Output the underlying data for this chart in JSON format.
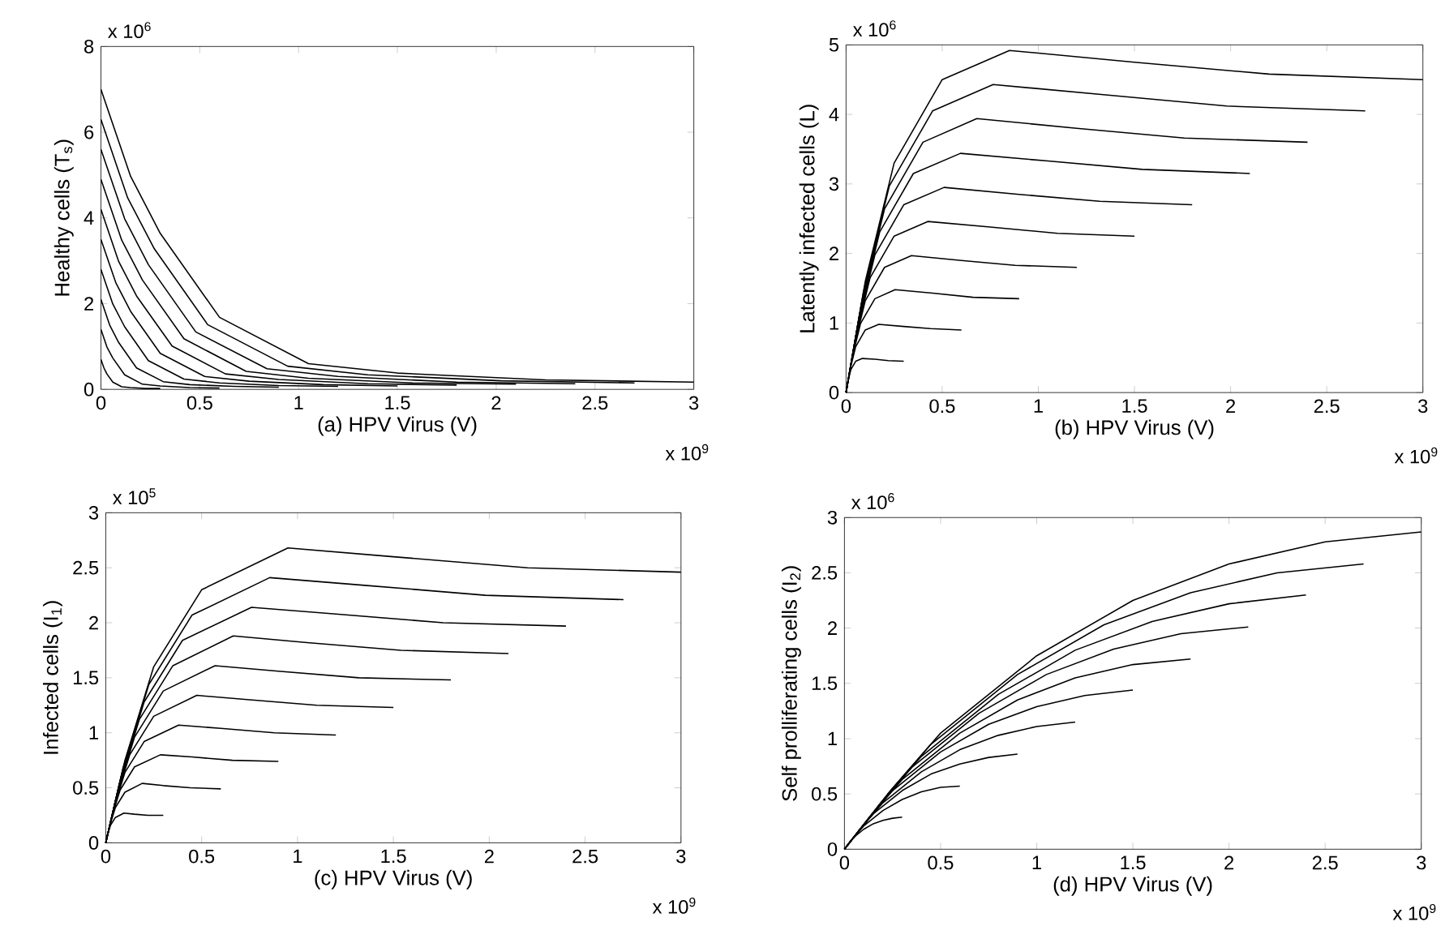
{
  "chart_data": [
    {
      "type": "line",
      "xlabel": "(a) HPV Virus (V)",
      "ylabel": "Healthy cells (T$_{s}$)",
      "annotations": [
        "x 10$^{6}$",
        "x 10$^{9}$"
      ],
      "xlim": [
        0,
        3
      ],
      "xticks": [
        0,
        0.5,
        1,
        1.5,
        2,
        2.5,
        3
      ],
      "ylim": [
        0,
        8
      ],
      "yticks": [
        0,
        2,
        4,
        6,
        8
      ],
      "series": [
        {
          "color": "#000000",
          "x": [
            0,
            0.015,
            0.03,
            0.06,
            0.105,
            0.15,
            0.225,
            0.3
          ],
          "values": [
            0.7,
            0.5,
            0.36,
            0.17,
            0.06,
            0.04,
            0.02,
            0.02
          ]
        },
        {
          "color": "#000000",
          "x": [
            0,
            0.03,
            0.06,
            0.12,
            0.21,
            0.3,
            0.45,
            0.6
          ],
          "values": [
            1.4,
            0.99,
            0.73,
            0.34,
            0.12,
            0.08,
            0.04,
            0.03
          ]
        },
        {
          "color": "#000000",
          "x": [
            0,
            0.045,
            0.09,
            0.18,
            0.315,
            0.45,
            0.675,
            0.9
          ],
          "values": [
            2.1,
            1.49,
            1.09,
            0.5,
            0.18,
            0.11,
            0.07,
            0.05
          ]
        },
        {
          "color": "#000000",
          "x": [
            0,
            0.06,
            0.12,
            0.24,
            0.42,
            0.6,
            0.9,
            1.2
          ],
          "values": [
            2.8,
            1.99,
            1.46,
            0.67,
            0.24,
            0.15,
            0.09,
            0.07
          ]
        },
        {
          "color": "#000000",
          "x": [
            0,
            0.075,
            0.15,
            0.3,
            0.525,
            0.75,
            1.125,
            1.5
          ],
          "values": [
            3.5,
            2.49,
            1.82,
            0.84,
            0.3,
            0.19,
            0.11,
            0.08
          ]
        },
        {
          "color": "#000000",
          "x": [
            0,
            0.09,
            0.18,
            0.36,
            0.63,
            0.9,
            1.35,
            1.8
          ],
          "values": [
            4.2,
            2.98,
            2.18,
            1.01,
            0.36,
            0.23,
            0.13,
            0.1
          ]
        },
        {
          "color": "#000000",
          "x": [
            0,
            0.105,
            0.21,
            0.42,
            0.735,
            1.05,
            1.575,
            2.1
          ],
          "values": [
            4.9,
            3.48,
            2.55,
            1.18,
            0.42,
            0.26,
            0.15,
            0.12
          ]
        },
        {
          "color": "#000000",
          "x": [
            0,
            0.12,
            0.24,
            0.48,
            0.84,
            1.2,
            1.8,
            2.4
          ],
          "values": [
            5.6,
            3.98,
            2.91,
            1.34,
            0.48,
            0.3,
            0.17,
            0.13
          ]
        },
        {
          "color": "#000000",
          "x": [
            0,
            0.135,
            0.27,
            0.54,
            0.945,
            1.35,
            2.025,
            2.7
          ],
          "values": [
            6.3,
            4.47,
            3.28,
            1.51,
            0.54,
            0.34,
            0.2,
            0.15
          ]
        },
        {
          "color": "#000000",
          "x": [
            0,
            0.15,
            0.3,
            0.6,
            1.05,
            1.5,
            2.25,
            3
          ],
          "values": [
            7,
            4.97,
            3.64,
            1.68,
            0.6,
            0.38,
            0.22,
            0.17
          ]
        }
      ]
    },
    {
      "type": "line",
      "xlabel": "(b) HPV Virus (V)",
      "ylabel": "Latently infected cells (L)",
      "annotations": [
        "x 10$^{6}$",
        "x 10$^{9}$"
      ],
      "xlim": [
        0,
        3
      ],
      "xticks": [
        0,
        0.5,
        1,
        1.5,
        2,
        2.5,
        3
      ],
      "ylim": [
        0,
        5
      ],
      "yticks": [
        0,
        1,
        2,
        3,
        4,
        5
      ],
      "series": [
        {
          "color": "#000000",
          "x": [
            0,
            0.01,
            0.025,
            0.05,
            0.085,
            0.15,
            0.22,
            0.3
          ],
          "values": [
            0,
            0.16,
            0.33,
            0.45,
            0.49,
            0.48,
            0.46,
            0.45
          ]
        },
        {
          "color": "#000000",
          "x": [
            0,
            0.02,
            0.05,
            0.1,
            0.17,
            0.3,
            0.44,
            0.6
          ],
          "values": [
            0,
            0.32,
            0.66,
            0.9,
            0.98,
            0.95,
            0.92,
            0.9
          ]
        },
        {
          "color": "#000000",
          "x": [
            0,
            0.03,
            0.075,
            0.15,
            0.255,
            0.45,
            0.66,
            0.9
          ],
          "values": [
            0,
            0.48,
            0.99,
            1.35,
            1.48,
            1.43,
            1.37,
            1.35
          ]
        },
        {
          "color": "#000000",
          "x": [
            0,
            0.04,
            0.1,
            0.2,
            0.34,
            0.6,
            0.88,
            1.2
          ],
          "values": [
            0,
            0.64,
            1.32,
            1.8,
            1.97,
            1.9,
            1.83,
            1.8
          ]
        },
        {
          "color": "#000000",
          "x": [
            0,
            0.05,
            0.125,
            0.25,
            0.425,
            0.75,
            1.1,
            1.5
          ],
          "values": [
            0,
            0.8,
            1.65,
            2.25,
            2.46,
            2.38,
            2.29,
            2.25
          ]
        },
        {
          "color": "#000000",
          "x": [
            0,
            0.06,
            0.15,
            0.3,
            0.51,
            0.9,
            1.32,
            1.8
          ],
          "values": [
            0,
            0.96,
            1.98,
            2.7,
            2.95,
            2.85,
            2.75,
            2.7
          ]
        },
        {
          "color": "#000000",
          "x": [
            0,
            0.07,
            0.175,
            0.35,
            0.595,
            1.05,
            1.54,
            2.1
          ],
          "values": [
            0,
            1.12,
            2.31,
            3.15,
            3.44,
            3.33,
            3.21,
            3.15
          ]
        },
        {
          "color": "#000000",
          "x": [
            0,
            0.08,
            0.2,
            0.4,
            0.68,
            1.2,
            1.76,
            2.4
          ],
          "values": [
            0,
            1.28,
            2.64,
            3.6,
            3.94,
            3.8,
            3.66,
            3.6
          ]
        },
        {
          "color": "#000000",
          "x": [
            0,
            0.09,
            0.225,
            0.45,
            0.765,
            1.35,
            1.98,
            2.7
          ],
          "values": [
            0,
            1.44,
            2.97,
            4.05,
            4.43,
            4.28,
            4.12,
            4.05
          ]
        },
        {
          "color": "#000000",
          "x": [
            0,
            0.1,
            0.25,
            0.5,
            0.85,
            1.5,
            2.2,
            3
          ],
          "values": [
            0,
            1.6,
            3.3,
            4.5,
            4.92,
            4.75,
            4.58,
            4.5
          ]
        }
      ]
    },
    {
      "type": "line",
      "xlabel": "(c) HPV Virus (V)",
      "ylabel": "Infected cells (I$_{1}$)",
      "annotations": [
        "x 10$^{5}$",
        "x 10$^{9}$"
      ],
      "xlim": [
        0,
        3
      ],
      "xticks": [
        0,
        0.5,
        1,
        1.5,
        2,
        2.5,
        3
      ],
      "ylim": [
        0,
        3
      ],
      "yticks": [
        0,
        0.5,
        1,
        1.5,
        2,
        2.5,
        3
      ],
      "series": [
        {
          "color": "#000000",
          "x": [
            0,
            0.01,
            0.025,
            0.05,
            0.095,
            0.15,
            0.22,
            0.3
          ],
          "values": [
            0,
            0.08,
            0.16,
            0.23,
            0.27,
            0.26,
            0.25,
            0.25
          ]
        },
        {
          "color": "#000000",
          "x": [
            0,
            0.02,
            0.05,
            0.1,
            0.19,
            0.3,
            0.44,
            0.6
          ],
          "values": [
            0,
            0.15,
            0.32,
            0.46,
            0.54,
            0.52,
            0.5,
            0.49
          ]
        },
        {
          "color": "#000000",
          "x": [
            0,
            0.03,
            0.075,
            0.15,
            0.285,
            0.45,
            0.66,
            0.9
          ],
          "values": [
            0,
            0.23,
            0.48,
            0.69,
            0.8,
            0.78,
            0.75,
            0.74
          ]
        },
        {
          "color": "#000000",
          "x": [
            0,
            0.04,
            0.1,
            0.2,
            0.38,
            0.6,
            0.88,
            1.2
          ],
          "values": [
            0,
            0.3,
            0.64,
            0.92,
            1.07,
            1.04,
            1,
            0.98
          ]
        },
        {
          "color": "#000000",
          "x": [
            0,
            0.05,
            0.125,
            0.25,
            0.475,
            0.75,
            1.1,
            1.5
          ],
          "values": [
            0,
            0.38,
            0.8,
            1.15,
            1.34,
            1.3,
            1.25,
            1.23
          ]
        },
        {
          "color": "#000000",
          "x": [
            0,
            0.06,
            0.15,
            0.3,
            0.57,
            0.9,
            1.32,
            1.8
          ],
          "values": [
            0,
            0.45,
            0.96,
            1.38,
            1.61,
            1.56,
            1.5,
            1.48
          ]
        },
        {
          "color": "#000000",
          "x": [
            0,
            0.07,
            0.175,
            0.35,
            0.665,
            1.05,
            1.54,
            2.1
          ],
          "values": [
            0,
            0.53,
            1.12,
            1.61,
            1.88,
            1.82,
            1.75,
            1.72
          ]
        },
        {
          "color": "#000000",
          "x": [
            0,
            0.08,
            0.2,
            0.4,
            0.76,
            1.2,
            1.76,
            2.4
          ],
          "values": [
            0,
            0.6,
            1.28,
            1.84,
            2.14,
            2.08,
            2,
            1.97
          ]
        },
        {
          "color": "#000000",
          "x": [
            0,
            0.09,
            0.225,
            0.45,
            0.855,
            1.35,
            1.98,
            2.7
          ],
          "values": [
            0,
            0.68,
            1.44,
            2.07,
            2.41,
            2.34,
            2.25,
            2.21
          ]
        },
        {
          "color": "#000000",
          "x": [
            0,
            0.1,
            0.25,
            0.5,
            0.95,
            1.5,
            2.2,
            3
          ],
          "values": [
            0,
            0.75,
            1.6,
            2.3,
            2.68,
            2.6,
            2.5,
            2.46
          ]
        }
      ]
    },
    {
      "type": "line",
      "xlabel": "(d) HPV Virus (V)",
      "ylabel": "Self prolliferating cells (I$_{2}$)",
      "annotations": [
        "x 10$^{6}$",
        "x 10$^{9}$"
      ],
      "xlim": [
        0,
        3
      ],
      "xticks": [
        0,
        0.5,
        1,
        1.5,
        2,
        2.5,
        3
      ],
      "ylim": [
        0,
        3
      ],
      "yticks": [
        0,
        0.5,
        1,
        1.5,
        2,
        2.5,
        3
      ],
      "series": [
        {
          "color": "#000000",
          "x": [
            0,
            0.025,
            0.05,
            0.1,
            0.15,
            0.2,
            0.25,
            0.3
          ],
          "values": [
            0,
            0.06,
            0.11,
            0.18,
            0.23,
            0.26,
            0.28,
            0.29
          ]
        },
        {
          "color": "#000000",
          "x": [
            0,
            0.05,
            0.1,
            0.2,
            0.3,
            0.4,
            0.5,
            0.6
          ],
          "values": [
            0,
            0.11,
            0.21,
            0.35,
            0.45,
            0.52,
            0.56,
            0.57
          ]
        },
        {
          "color": "#000000",
          "x": [
            0,
            0.075,
            0.15,
            0.3,
            0.45,
            0.6,
            0.75,
            0.9
          ],
          "values": [
            0,
            0.17,
            0.32,
            0.53,
            0.68,
            0.77,
            0.83,
            0.86
          ]
        },
        {
          "color": "#000000",
          "x": [
            0,
            0.1,
            0.2,
            0.4,
            0.6,
            0.8,
            1,
            1.2
          ],
          "values": [
            0,
            0.22,
            0.42,
            0.7,
            0.9,
            1.03,
            1.11,
            1.15
          ]
        },
        {
          "color": "#000000",
          "x": [
            0,
            0.125,
            0.25,
            0.5,
            0.75,
            1,
            1.25,
            1.5
          ],
          "values": [
            0,
            0.28,
            0.53,
            0.88,
            1.13,
            1.29,
            1.39,
            1.44
          ]
        },
        {
          "color": "#000000",
          "x": [
            0,
            0.15,
            0.3,
            0.6,
            0.9,
            1.2,
            1.5,
            1.8
          ],
          "values": [
            0,
            0.33,
            0.63,
            1.05,
            1.35,
            1.55,
            1.67,
            1.72
          ]
        },
        {
          "color": "#000000",
          "x": [
            0,
            0.175,
            0.35,
            0.7,
            1.05,
            1.4,
            1.75,
            2.1
          ],
          "values": [
            0,
            0.39,
            0.74,
            1.23,
            1.58,
            1.81,
            1.95,
            2.01
          ]
        },
        {
          "color": "#000000",
          "x": [
            0,
            0.2,
            0.4,
            0.8,
            1.2,
            1.6,
            2,
            2.4
          ],
          "values": [
            0,
            0.44,
            0.84,
            1.4,
            1.8,
            2.06,
            2.22,
            2.3
          ]
        },
        {
          "color": "#000000",
          "x": [
            0,
            0.225,
            0.45,
            0.9,
            1.35,
            1.8,
            2.25,
            2.7
          ],
          "values": [
            0,
            0.5,
            0.95,
            1.58,
            2.03,
            2.32,
            2.5,
            2.58
          ]
        },
        {
          "color": "#000000",
          "x": [
            0,
            0.25,
            0.5,
            1,
            1.5,
            2,
            2.5,
            3
          ],
          "values": [
            0,
            0.55,
            1.05,
            1.75,
            2.25,
            2.58,
            2.78,
            2.87
          ]
        }
      ]
    }
  ]
}
